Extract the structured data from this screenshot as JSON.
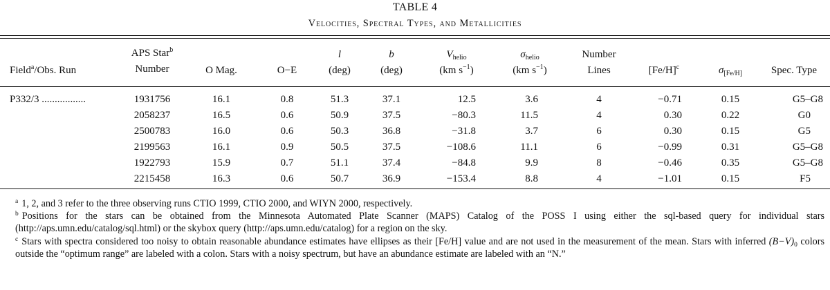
{
  "table": {
    "label": "TABLE 4",
    "caption": "Velocities, Spectral Types, and Metallicities"
  },
  "columns": {
    "field": {
      "main": "Field",
      "sup": "a",
      "rest": "/Obs. Run"
    },
    "aps": {
      "line1": "APS Star",
      "sup": "b",
      "line2": "Number"
    },
    "omag": {
      "label": "O Mag."
    },
    "oe": {
      "label": "O−E"
    },
    "l": {
      "symbol": "l",
      "unit": "(deg)"
    },
    "b": {
      "symbol": "b",
      "unit": "(deg)"
    },
    "vhelio": {
      "symbol": "V",
      "sub": "helio",
      "unit_pre": "(km s",
      "unit_exp": "−1",
      "unit_post": ")"
    },
    "sigma_helio": {
      "symbol": "σ",
      "sub": "helio",
      "unit_pre": "(km s",
      "unit_exp": "−1",
      "unit_post": ")"
    },
    "nlines": {
      "line1": "Number",
      "line2": "Lines"
    },
    "feh": {
      "main": "[Fe/H]",
      "sup": "c"
    },
    "sigma_feh": {
      "symbol": "σ",
      "sub": "[Fe/H]"
    },
    "spec": {
      "label": "Spec. Type"
    }
  },
  "rows": [
    {
      "field": "P332/3 .................",
      "aps": "1931756",
      "omag": "16.1",
      "oe": "0.8",
      "l": "51.3",
      "b": "37.1",
      "vhelio": "12.5",
      "sigma_helio": "3.6",
      "nlines": "4",
      "feh": "−0.71",
      "sigma_feh": "0.15",
      "spec": "G5–G8"
    },
    {
      "field": "",
      "aps": "2058237",
      "omag": "16.5",
      "oe": "0.6",
      "l": "50.9",
      "b": "37.5",
      "vhelio": "−80.3",
      "sigma_helio": "11.5",
      "nlines": "4",
      "feh": "0.30",
      "sigma_feh": "0.22",
      "spec": "G0"
    },
    {
      "field": "",
      "aps": "2500783",
      "omag": "16.0",
      "oe": "0.6",
      "l": "50.3",
      "b": "36.8",
      "vhelio": "−31.8",
      "sigma_helio": "3.7",
      "nlines": "6",
      "feh": "0.30",
      "sigma_feh": "0.15",
      "spec": "G5"
    },
    {
      "field": "",
      "aps": "2199563",
      "omag": "16.1",
      "oe": "0.9",
      "l": "50.5",
      "b": "37.5",
      "vhelio": "−108.6",
      "sigma_helio": "11.1",
      "nlines": "6",
      "feh": "−0.99",
      "sigma_feh": "0.31",
      "spec": "G5–G8"
    },
    {
      "field": "",
      "aps": "1922793",
      "omag": "15.9",
      "oe": "0.7",
      "l": "51.1",
      "b": "37.4",
      "vhelio": "−84.8",
      "sigma_helio": "9.9",
      "nlines": "8",
      "feh": "−0.46",
      "sigma_feh": "0.35",
      "spec": "G5–G8"
    },
    {
      "field": "",
      "aps": "2215458",
      "omag": "16.3",
      "oe": "0.6",
      "l": "50.7",
      "b": "36.9",
      "vhelio": "−153.4",
      "sigma_helio": "8.8",
      "nlines": "4",
      "feh": "−1.01",
      "sigma_feh": "0.15",
      "spec": "F5"
    }
  ],
  "footnotes": {
    "a": {
      "mark": "a",
      "text": "1, 2, and 3 refer to the three observing runs CTIO 1999, CTIO 2000, and WIYN 2000, respectively."
    },
    "b": {
      "mark": "b",
      "text": "Positions for the stars can be obtained from the Minnesota Automated Plate Scanner (MAPS) Catalog of the POSS I using either the sql-based query for individual stars (http://aps.umn.edu/catalog/sql.html) or the skybox query (http://aps.umn.edu/catalog) for a region on the sky."
    },
    "c": {
      "mark": "c",
      "text1": "Stars with spectra considered too noisy to obtain reasonable abundance estimates have ellipses as their [Fe/H] value and are not used in the measurement of the mean. Stars with inferred ",
      "color": "(B−V)",
      "color_sub": "0",
      "text2": " colors outside the “optimum range” are labeled with a colon. Stars with a noisy spectrum, but have an abundance estimate are labeled with an “N.”"
    }
  }
}
